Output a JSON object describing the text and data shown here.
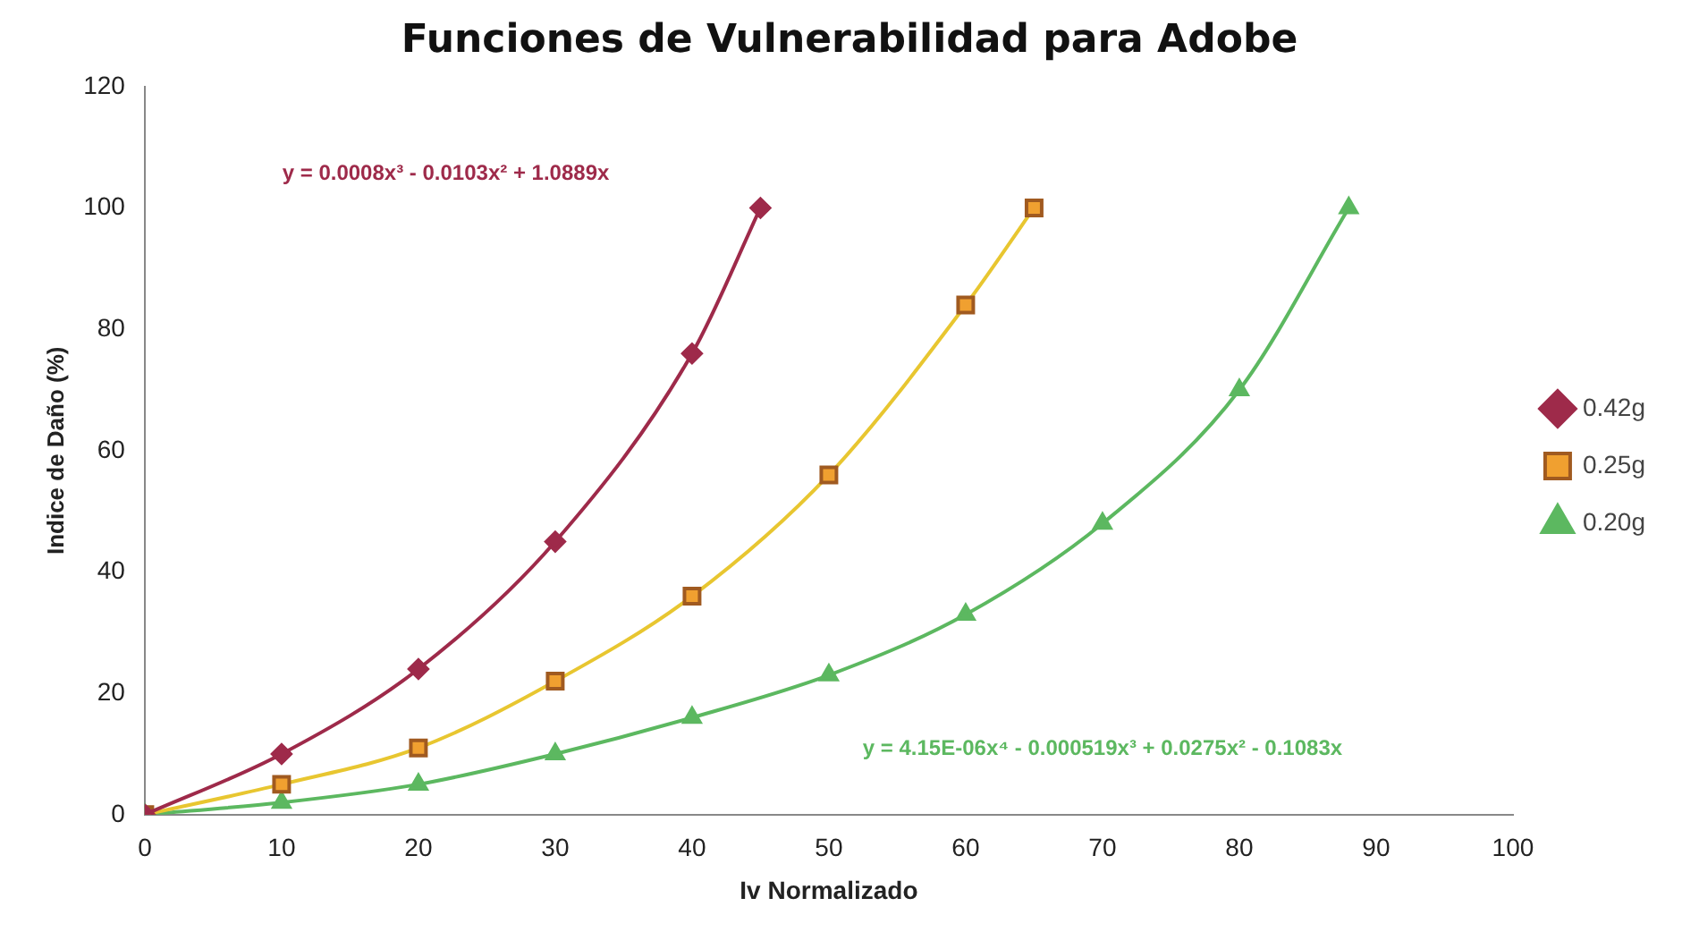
{
  "chart_data": {
    "type": "line",
    "title": "Funciones de Vulnerabilidad para Adobe",
    "xlabel": "Iv Normalizado",
    "ylabel": "Indice de Daño (%)",
    "xlim": [
      0,
      100
    ],
    "xticks": [
      0,
      10,
      20,
      30,
      40,
      50,
      60,
      70,
      80,
      90,
      100
    ],
    "ylim": [
      0,
      120
    ],
    "yticks": [
      0,
      20,
      40,
      60,
      80,
      100,
      120
    ],
    "grid": false,
    "legend": "right",
    "series": [
      {
        "name": "0.42g",
        "color": "#9e2a4a",
        "marker": "diamond",
        "x": [
          0,
          10,
          20,
          30,
          40,
          45
        ],
        "values": [
          0,
          10,
          24,
          45,
          76,
          100
        ]
      },
      {
        "name": "0.25g",
        "color": "#e8c630",
        "marker": "square",
        "x": [
          0,
          10,
          20,
          30,
          40,
          50,
          60,
          65
        ],
        "values": [
          0,
          5,
          11,
          22,
          36,
          56,
          84,
          100
        ]
      },
      {
        "name": "0.20g",
        "color": "#5cb860",
        "marker": "triangle",
        "x": [
          0,
          10,
          20,
          30,
          40,
          50,
          60,
          70,
          80,
          88
        ],
        "values": [
          0,
          2,
          5,
          10,
          16,
          23,
          33,
          48,
          70,
          100
        ]
      }
    ],
    "annotations": [
      "y = 0.0008x³ - 0.0103x² + 1.0889x",
      "y = 4.15E-06x⁴ - 0.000519x³ + 0.0275x² - 0.1083x"
    ]
  }
}
